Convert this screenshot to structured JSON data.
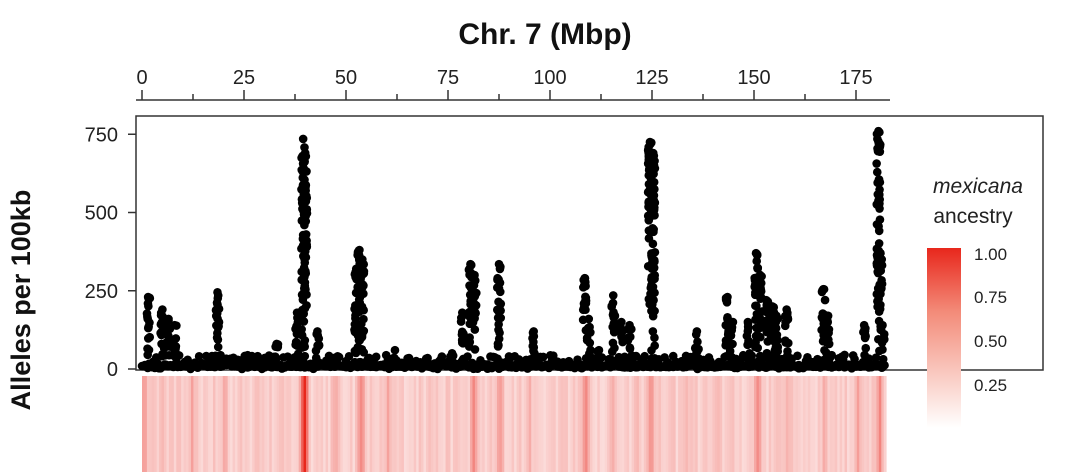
{
  "chart_data": {
    "type": "scatter",
    "title": "Chr. 7 (Mbp)",
    "xlabel": "Chr. 7 (Mbp)",
    "ylabel": "Alleles per 100kb",
    "x_ticks": [
      "0",
      "25",
      "50",
      "75",
      "100",
      "125",
      "150",
      "175"
    ],
    "y_ticks": [
      "0",
      "250",
      "500",
      "750"
    ],
    "xlim": [
      0,
      182
    ],
    "ylim": [
      0,
      780
    ],
    "x_axis_position": "top",
    "grid": false,
    "point_color": "#000000",
    "peaks": [
      {
        "x": 1.5,
        "y": 230
      },
      {
        "x": 5,
        "y": 190
      },
      {
        "x": 6.5,
        "y": 160
      },
      {
        "x": 8,
        "y": 140
      },
      {
        "x": 18.5,
        "y": 245
      },
      {
        "x": 33,
        "y": 80
      },
      {
        "x": 38,
        "y": 180
      },
      {
        "x": 39.5,
        "y": 735
      },
      {
        "x": 40,
        "y": 690
      },
      {
        "x": 43,
        "y": 120
      },
      {
        "x": 52.5,
        "y": 320
      },
      {
        "x": 53.3,
        "y": 380
      },
      {
        "x": 54,
        "y": 350
      },
      {
        "x": 62,
        "y": 60
      },
      {
        "x": 76,
        "y": 50
      },
      {
        "x": 78.5,
        "y": 180
      },
      {
        "x": 80.5,
        "y": 335
      },
      {
        "x": 81.5,
        "y": 300
      },
      {
        "x": 87.5,
        "y": 335
      },
      {
        "x": 96,
        "y": 120
      },
      {
        "x": 108.5,
        "y": 290
      },
      {
        "x": 109.5,
        "y": 160
      },
      {
        "x": 112,
        "y": 60
      },
      {
        "x": 115.5,
        "y": 235
      },
      {
        "x": 117.5,
        "y": 150
      },
      {
        "x": 119.5,
        "y": 140
      },
      {
        "x": 124.5,
        "y": 725
      },
      {
        "x": 125.3,
        "y": 690
      },
      {
        "x": 136,
        "y": 120
      },
      {
        "x": 143.5,
        "y": 230
      },
      {
        "x": 144.5,
        "y": 150
      },
      {
        "x": 148.5,
        "y": 150
      },
      {
        "x": 150.5,
        "y": 370
      },
      {
        "x": 151.5,
        "y": 300
      },
      {
        "x": 153,
        "y": 220
      },
      {
        "x": 154.5,
        "y": 200
      },
      {
        "x": 155.5,
        "y": 170
      },
      {
        "x": 158,
        "y": 190
      },
      {
        "x": 167,
        "y": 255
      },
      {
        "x": 168,
        "y": 170
      },
      {
        "x": 177,
        "y": 140
      },
      {
        "x": 180.5,
        "y": 760
      },
      {
        "x": 181,
        "y": 370
      },
      {
        "x": 181.5,
        "y": 140
      }
    ],
    "ancestry_heatmap": {
      "hot_bands": [
        {
          "x": 0.5,
          "intensity": 0.45
        },
        {
          "x": 5,
          "intensity": 0.35
        },
        {
          "x": 12,
          "intensity": 0.3
        },
        {
          "x": 20,
          "intensity": 0.35
        },
        {
          "x": 28,
          "intensity": 0.3
        },
        {
          "x": 39.5,
          "intensity": 1.0
        },
        {
          "x": 47,
          "intensity": 0.35
        },
        {
          "x": 53.3,
          "intensity": 0.55
        },
        {
          "x": 60,
          "intensity": 0.3
        },
        {
          "x": 70,
          "intensity": 0.3
        },
        {
          "x": 81,
          "intensity": 0.45
        },
        {
          "x": 87.5,
          "intensity": 0.4
        },
        {
          "x": 95,
          "intensity": 0.3
        },
        {
          "x": 103,
          "intensity": 0.3
        },
        {
          "x": 108.5,
          "intensity": 0.5
        },
        {
          "x": 115,
          "intensity": 0.35
        },
        {
          "x": 121,
          "intensity": 0.3
        },
        {
          "x": 124.5,
          "intensity": 0.55
        },
        {
          "x": 133,
          "intensity": 0.3
        },
        {
          "x": 141,
          "intensity": 0.3
        },
        {
          "x": 150.5,
          "intensity": 0.5
        },
        {
          "x": 158,
          "intensity": 0.35
        },
        {
          "x": 167,
          "intensity": 0.4
        },
        {
          "x": 175,
          "intensity": 0.35
        },
        {
          "x": 180.5,
          "intensity": 0.45
        }
      ]
    },
    "legend": {
      "title_line1": "mexicana",
      "title_line2": "ancestry",
      "ticks": [
        "1.00",
        "0.75",
        "0.50",
        "0.25"
      ],
      "color_high": "#e8271c",
      "color_low": "#ffffff",
      "placement": "right"
    }
  }
}
